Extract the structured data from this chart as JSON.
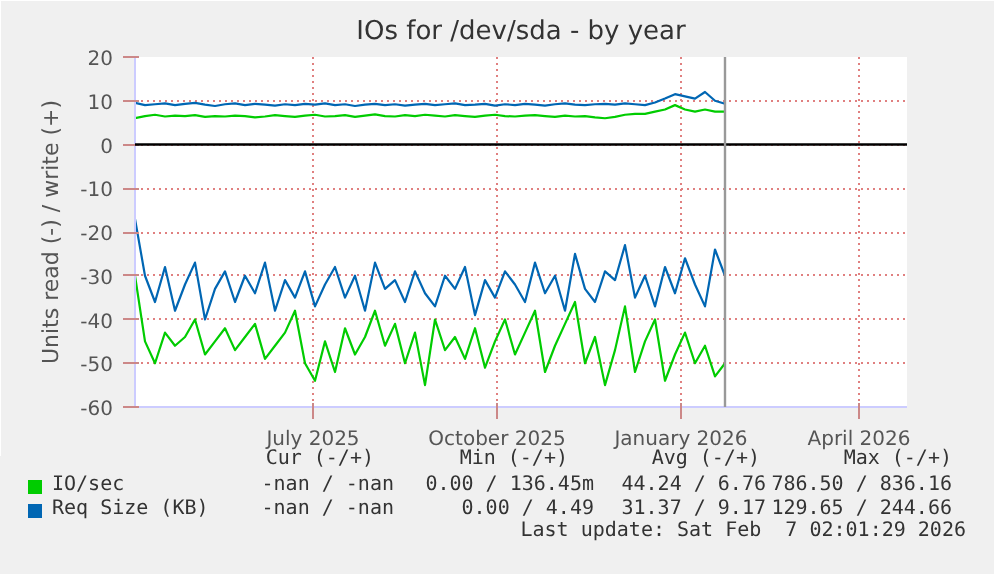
{
  "chart_data": {
    "type": "line",
    "title": "IOs for /dev/sda - by year",
    "ylabel": "Units read (-) / write (+)",
    "x": [
      "2025-04-18",
      "2025-04-23",
      "2025-04-28",
      "2025-05-03",
      "2025-05-08",
      "2025-05-13",
      "2025-05-18",
      "2025-05-23",
      "2025-05-28",
      "2025-06-02",
      "2025-06-07",
      "2025-06-12",
      "2025-06-17",
      "2025-06-22",
      "2025-06-27",
      "2025-07-02",
      "2025-07-07",
      "2025-07-12",
      "2025-07-17",
      "2025-07-22",
      "2025-07-27",
      "2025-08-01",
      "2025-08-06",
      "2025-08-11",
      "2025-08-16",
      "2025-08-21",
      "2025-08-26",
      "2025-08-31",
      "2025-09-05",
      "2025-09-10",
      "2025-09-15",
      "2025-09-20",
      "2025-09-25",
      "2025-09-30",
      "2025-10-05",
      "2025-10-10",
      "2025-10-15",
      "2025-10-20",
      "2025-10-25",
      "2025-10-30",
      "2025-11-04",
      "2025-11-09",
      "2025-11-14",
      "2025-11-19",
      "2025-11-24",
      "2025-11-29",
      "2025-12-04",
      "2025-12-09",
      "2025-12-14",
      "2025-12-19",
      "2025-12-24",
      "2025-12-29",
      "2026-01-03",
      "2026-01-08",
      "2026-01-13",
      "2026-01-18",
      "2026-01-23",
      "2026-01-28",
      "2026-02-02",
      "2026-02-07"
    ],
    "series": [
      {
        "name": "IO/sec",
        "color": "#00cc00",
        "values": [
          6,
          6.5,
          6.8,
          6.4,
          6.6,
          6.5,
          6.7,
          6.3,
          6.5,
          6.4,
          6.6,
          6.5,
          6.2,
          6.4,
          6.7,
          6.5,
          6.3,
          6.6,
          6.8,
          6.4,
          6.5,
          6.7,
          6.3,
          6.6,
          6.9,
          6.5,
          6.4,
          6.7,
          6.5,
          6.8,
          6.6,
          6.4,
          6.7,
          6.5,
          6.3,
          6.6,
          6.8,
          6.5,
          6.4,
          6.6,
          6.7,
          6.5,
          6.3,
          6.6,
          6.4,
          6.5,
          6.2,
          6,
          6.3,
          6.8,
          7,
          7,
          7.5,
          8,
          9,
          8,
          7.5,
          8,
          7.5,
          7.5
        ]
      },
      {
        "color": "#00cc00",
        "values": [
          -30,
          -45,
          -50,
          -43,
          -46,
          -44,
          -40,
          -48,
          -45,
          -42,
          -47,
          -44,
          -41,
          -49,
          -46,
          -43,
          -38,
          -50,
          -54,
          -45,
          -52,
          -42,
          -48,
          -44,
          -38,
          -46,
          -41,
          -50,
          -43,
          -55,
          -40,
          -47,
          -44,
          -49,
          -42,
          -51,
          -45,
          -40,
          -48,
          -43,
          -38,
          -52,
          -46,
          -41,
          -36,
          -50,
          -44,
          -55,
          -47,
          -37,
          -52,
          -45,
          -40,
          -54,
          -48,
          -43,
          -50,
          -46,
          -53,
          -50
        ]
      },
      {
        "name": "Req Size (KB)",
        "color": "#0066b3",
        "values": [
          9.5,
          9,
          9.2,
          9.4,
          9,
          9.3,
          9.5,
          9.1,
          8.8,
          9.2,
          9.4,
          9,
          9.3,
          9.1,
          8.9,
          9.2,
          9,
          9.3,
          9.1,
          9.4,
          9,
          9.2,
          8.8,
          9.1,
          9.3,
          9,
          9.2,
          8.9,
          9.1,
          9.3,
          9,
          9.2,
          9.4,
          9,
          9.1,
          9.3,
          8.9,
          9.2,
          9,
          9.3,
          9.1,
          8.9,
          9.2,
          9.4,
          9.1,
          9,
          9.2,
          9.3,
          9.1,
          9.4,
          9.2,
          9,
          9.6,
          10.5,
          11.5,
          11,
          10.5,
          12,
          10,
          9.3
        ]
      },
      {
        "color": "#0066b3",
        "values": [
          -17,
          -30,
          -36,
          -28,
          -38,
          -32,
          -27,
          -40,
          -33,
          -29,
          -36,
          -30,
          -34,
          -27,
          -38,
          -31,
          -35,
          -29,
          -37,
          -32,
          -28,
          -35,
          -30,
          -38,
          -27,
          -33,
          -31,
          -36,
          -29,
          -34,
          -37,
          -30,
          -33,
          -28,
          -39,
          -31,
          -35,
          -29,
          -32,
          -36,
          -27,
          -34,
          -30,
          -38,
          -25,
          -33,
          -36,
          -29,
          -31,
          -23,
          -35,
          -30,
          -37,
          -28,
          -34,
          -26,
          -32,
          -37,
          -24,
          -30
        ]
      }
    ],
    "xlim": [
      "2025-04-18",
      "2026-05-09"
    ],
    "xticks": [
      {
        "value": "2025-07-16",
        "label": "July 2025"
      },
      {
        "value": "2025-10-16",
        "label": "October 2025"
      },
      {
        "value": "2026-01-16",
        "label": "January 2026"
      },
      {
        "value": "2026-04-15",
        "label": "April 2026"
      }
    ],
    "ylim": [
      -60,
      20
    ],
    "yticks": [
      -60,
      -50,
      -40,
      -30,
      -20,
      -10,
      0,
      10,
      20
    ],
    "grid": true,
    "legend": "bottom left",
    "ref_lines": [
      {
        "axis": "y",
        "value": 0,
        "color": "#000000"
      },
      {
        "axis": "x",
        "value": "2026-02-07",
        "color": "#999999"
      }
    ],
    "annotations": [
      "Cur (-/+)",
      "Min (-/+)",
      "Avg (-/+)",
      "Max (-/+)",
      "-nan / -nan",
      "0.00 / 136.45m",
      "44.24 / 6.76",
      "786.50 / 836.16",
      "-nan / -nan",
      "0.00 / 4.49",
      "31.37 / 9.17",
      "129.65 / 244.66",
      "Last update: Sat Feb  7 02:01:29 2026"
    ]
  }
}
